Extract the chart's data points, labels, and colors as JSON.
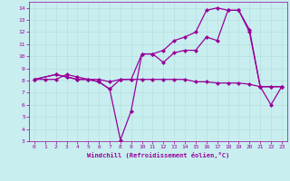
{
  "xlabel": "Windchill (Refroidissement éolien,°C)",
  "bg_color": "#c8eef0",
  "line_color": "#990099",
  "grid_color": "#b8dfe0",
  "xlim": [
    -0.5,
    23.5
  ],
  "ylim": [
    3,
    14.5
  ],
  "xticks": [
    0,
    1,
    2,
    3,
    4,
    5,
    6,
    7,
    8,
    9,
    10,
    11,
    12,
    13,
    14,
    15,
    16,
    17,
    18,
    19,
    20,
    21,
    22,
    23
  ],
  "yticks": [
    3,
    4,
    5,
    6,
    7,
    8,
    9,
    10,
    11,
    12,
    13,
    14
  ],
  "line1_x": [
    0,
    1,
    2,
    3,
    4,
    5,
    6,
    7,
    8,
    9,
    10,
    11,
    12,
    13,
    14,
    15,
    16,
    17,
    18,
    19,
    20,
    21,
    22,
    23
  ],
  "line1_y": [
    8.1,
    8.1,
    8.1,
    8.5,
    8.3,
    8.1,
    8.1,
    7.9,
    8.1,
    8.1,
    8.1,
    8.1,
    8.1,
    8.1,
    8.1,
    7.9,
    7.9,
    7.8,
    7.8,
    7.8,
    7.7,
    7.5,
    7.5,
    7.5
  ],
  "line2_x": [
    0,
    2,
    3,
    4,
    5,
    6,
    7,
    8,
    9,
    10,
    11,
    12,
    13,
    14,
    15,
    16,
    17,
    18,
    19,
    20,
    21,
    22,
    23
  ],
  "line2_y": [
    8.1,
    8.5,
    8.3,
    8.1,
    8.1,
    7.9,
    7.3,
    3.1,
    5.5,
    10.2,
    10.2,
    9.5,
    10.3,
    10.5,
    10.5,
    11.6,
    11.3,
    13.8,
    13.8,
    12.2,
    7.5,
    6.0,
    7.5
  ],
  "line3_x": [
    0,
    2,
    3,
    4,
    5,
    6,
    7,
    8,
    9,
    10,
    11,
    12,
    13,
    14,
    15,
    16,
    17,
    18,
    19,
    20,
    21,
    22,
    23
  ],
  "line3_y": [
    8.1,
    8.5,
    8.3,
    8.1,
    8.1,
    7.9,
    7.3,
    8.1,
    8.1,
    10.2,
    10.2,
    10.5,
    11.3,
    11.6,
    12.0,
    13.8,
    14.0,
    13.8,
    13.8,
    12.0,
    7.5,
    7.5,
    7.5
  ],
  "marker": "D",
  "marker_size": 2.5,
  "line_width": 0.9
}
